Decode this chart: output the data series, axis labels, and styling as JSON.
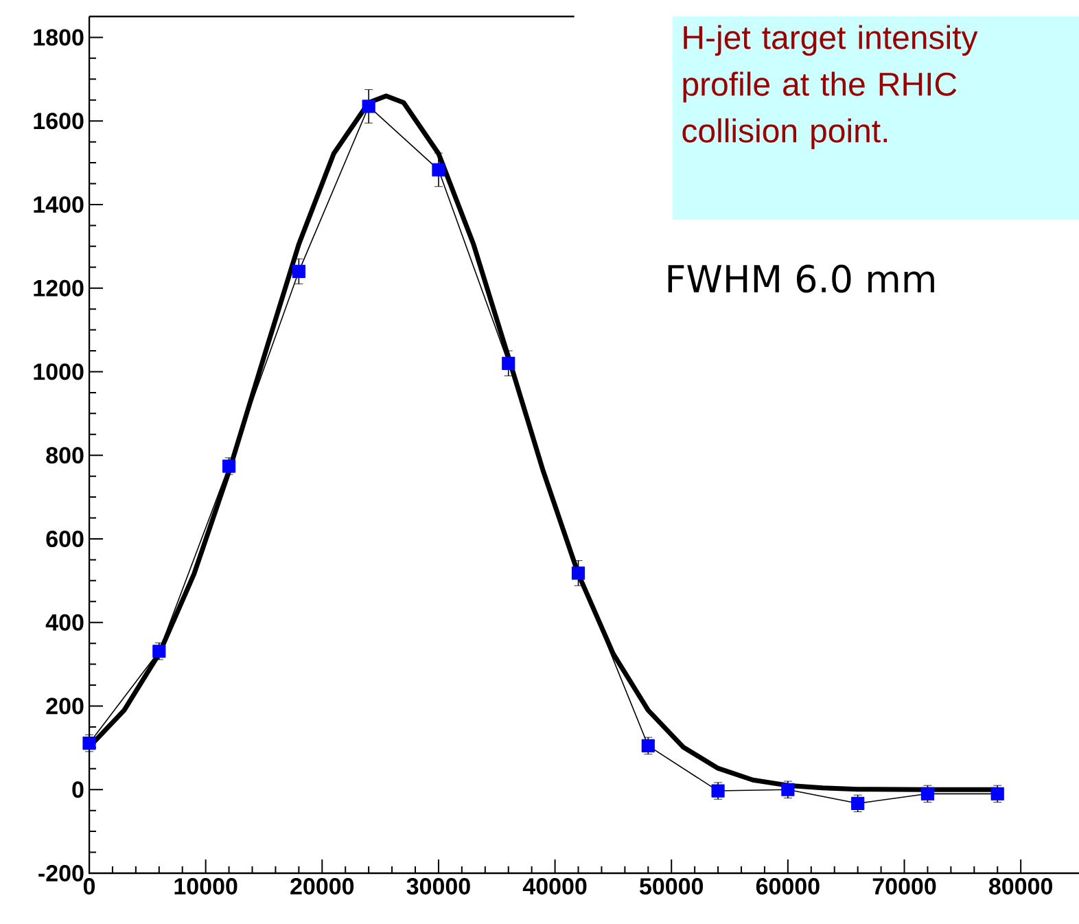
{
  "chart_data": {
    "type": "line",
    "xlim": [
      0,
      85000
    ],
    "ylim": [
      -200,
      1850
    ],
    "xticks": [
      0,
      10000,
      20000,
      30000,
      40000,
      50000,
      60000,
      70000,
      80000
    ],
    "yticks": [
      -200,
      0,
      200,
      400,
      600,
      800,
      1000,
      1200,
      1400,
      1600,
      1800
    ],
    "series": [
      {
        "type": "line",
        "color": "#0000ff",
        "marker": "square",
        "x": [
          0,
          6000,
          12000,
          18000,
          24000,
          30000,
          36000,
          42000,
          48000,
          54000,
          60000,
          66000,
          72000,
          78000
        ],
        "values": [
          111,
          331,
          774,
          1240,
          1635,
          1483,
          1020,
          518,
          105,
          -3,
          0,
          -33,
          -10,
          -10
        ],
        "errors": [
          20,
          20,
          20,
          30,
          40,
          40,
          30,
          30,
          20,
          20,
          20,
          20,
          20,
          20
        ]
      },
      {
        "type": "line",
        "color": "#000000",
        "marker": "none",
        "x": [
          0,
          3000,
          6000,
          9000,
          12000,
          15000,
          18000,
          21000,
          24000,
          25500,
          27000,
          30000,
          33000,
          36000,
          39000,
          42000,
          45000,
          48000,
          51000,
          54000,
          57000,
          60000,
          63000,
          66000,
          72000,
          78000
        ],
        "values": [
          102,
          190,
          325,
          516,
          761,
          1035,
          1305,
          1522,
          1644,
          1660,
          1644,
          1522,
          1305,
          1035,
          761,
          516,
          325,
          190,
          102,
          51,
          23,
          10,
          4,
          1,
          0,
          0
        ]
      }
    ],
    "annotations": [
      "H-jet target intensity profile at the RHIC collision point.",
      "FWHM 6.0 mm"
    ]
  }
}
